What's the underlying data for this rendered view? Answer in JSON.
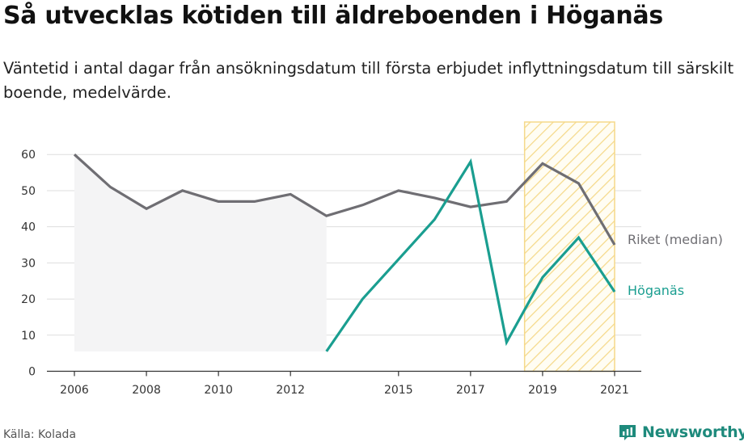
{
  "title": "Så utvecklas kötiden till äldreboenden i Höganäs",
  "subtitle": "Väntetid i antal dagar från ansökningsdatum till första erbjudet inflyttningsdatum till särskilt boende, medelvärde.",
  "source": "Källa: Kolada",
  "brand": "Newsworthy",
  "colors": {
    "riket": "#6f6e73",
    "hoganas": "#1a9e90",
    "area": "#f4f4f5",
    "highlight_stroke": "#f5d98a",
    "grid": "#dddddd"
  },
  "chart_data": {
    "type": "line",
    "x": [
      2006,
      2007,
      2008,
      2009,
      2010,
      2011,
      2012,
      2013,
      2014,
      2015,
      2016,
      2017,
      2018,
      2019,
      2020,
      2021
    ],
    "x_ticks": [
      "2006",
      "2008",
      "2010",
      "2012",
      "2015",
      "2017",
      "2019",
      "2021"
    ],
    "y_ticks": [
      "0",
      "10",
      "20",
      "30",
      "40",
      "50",
      "60"
    ],
    "ylim": [
      0,
      69
    ],
    "xlim": [
      2006,
      2021
    ],
    "grid": true,
    "highlight_range": [
      2018.5,
      2021
    ],
    "series": [
      {
        "name": "Riket (median)",
        "values": [
          60,
          51,
          45,
          50,
          47,
          47,
          49,
          43,
          46,
          50,
          48,
          45.5,
          47,
          57.5,
          52,
          35
        ]
      },
      {
        "name": "Höganäs",
        "values": [
          null,
          null,
          null,
          null,
          null,
          null,
          null,
          5.5,
          20,
          31,
          42,
          58,
          8,
          26,
          37,
          22
        ]
      }
    ]
  }
}
